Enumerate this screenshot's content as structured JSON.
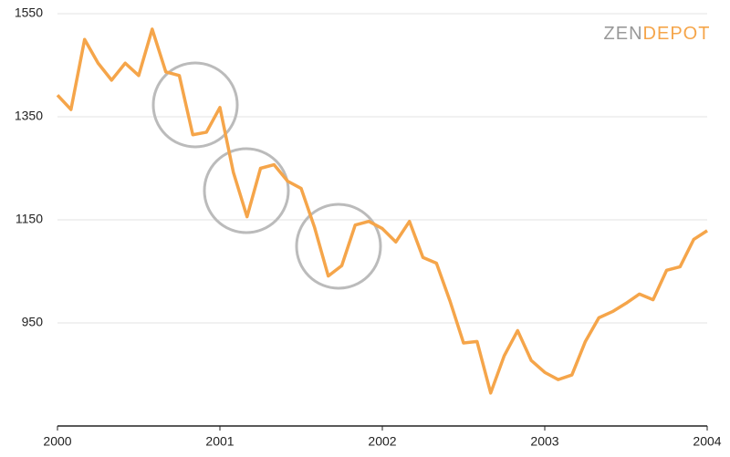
{
  "chart_data": {
    "type": "line",
    "logo": [
      "ZEN",
      "DEPOT"
    ],
    "x": [
      2000,
      2000.083,
      2000.167,
      2000.25,
      2000.333,
      2000.417,
      2000.5,
      2000.583,
      2000.667,
      2000.75,
      2000.833,
      2000.917,
      2001,
      2001.083,
      2001.167,
      2001.25,
      2001.333,
      2001.417,
      2001.5,
      2001.583,
      2001.667,
      2001.75,
      2001.833,
      2001.917,
      2002,
      2002.083,
      2002.167,
      2002.25,
      2002.333,
      2002.417,
      2002.5,
      2002.583,
      2002.667,
      2002.75,
      2002.833,
      2002.917,
      2003,
      2003.083,
      2003.167,
      2003.25,
      2003.333,
      2003.417,
      2003.5,
      2003.583,
      2003.667,
      2003.75,
      2003.833,
      2003.917,
      2004
    ],
    "series": [
      {
        "color": "#f5a54a",
        "values": [
          1392,
          1364,
          1500,
          1454,
          1421,
          1454,
          1430,
          1520,
          1437,
          1430,
          1315,
          1320,
          1368,
          1242,
          1156,
          1250,
          1257,
          1225,
          1211,
          1135,
          1041,
          1061,
          1140,
          1147,
          1133,
          1107,
          1147,
          1077,
          1066,
          992,
          911,
          914,
          814,
          886,
          935,
          877,
          854,
          840,
          849,
          914,
          960,
          972,
          988,
          1006,
          995,
          1052,
          1059,
          1112,
          1129
        ]
      }
    ],
    "xlim": [
      2000,
      2004
    ],
    "xticks": [
      2000,
      2001,
      2002,
      2003,
      2004
    ],
    "ylim": [
      750,
      1550
    ],
    "yticks": [
      950,
      1150,
      1350,
      1550
    ],
    "grid": true
  }
}
